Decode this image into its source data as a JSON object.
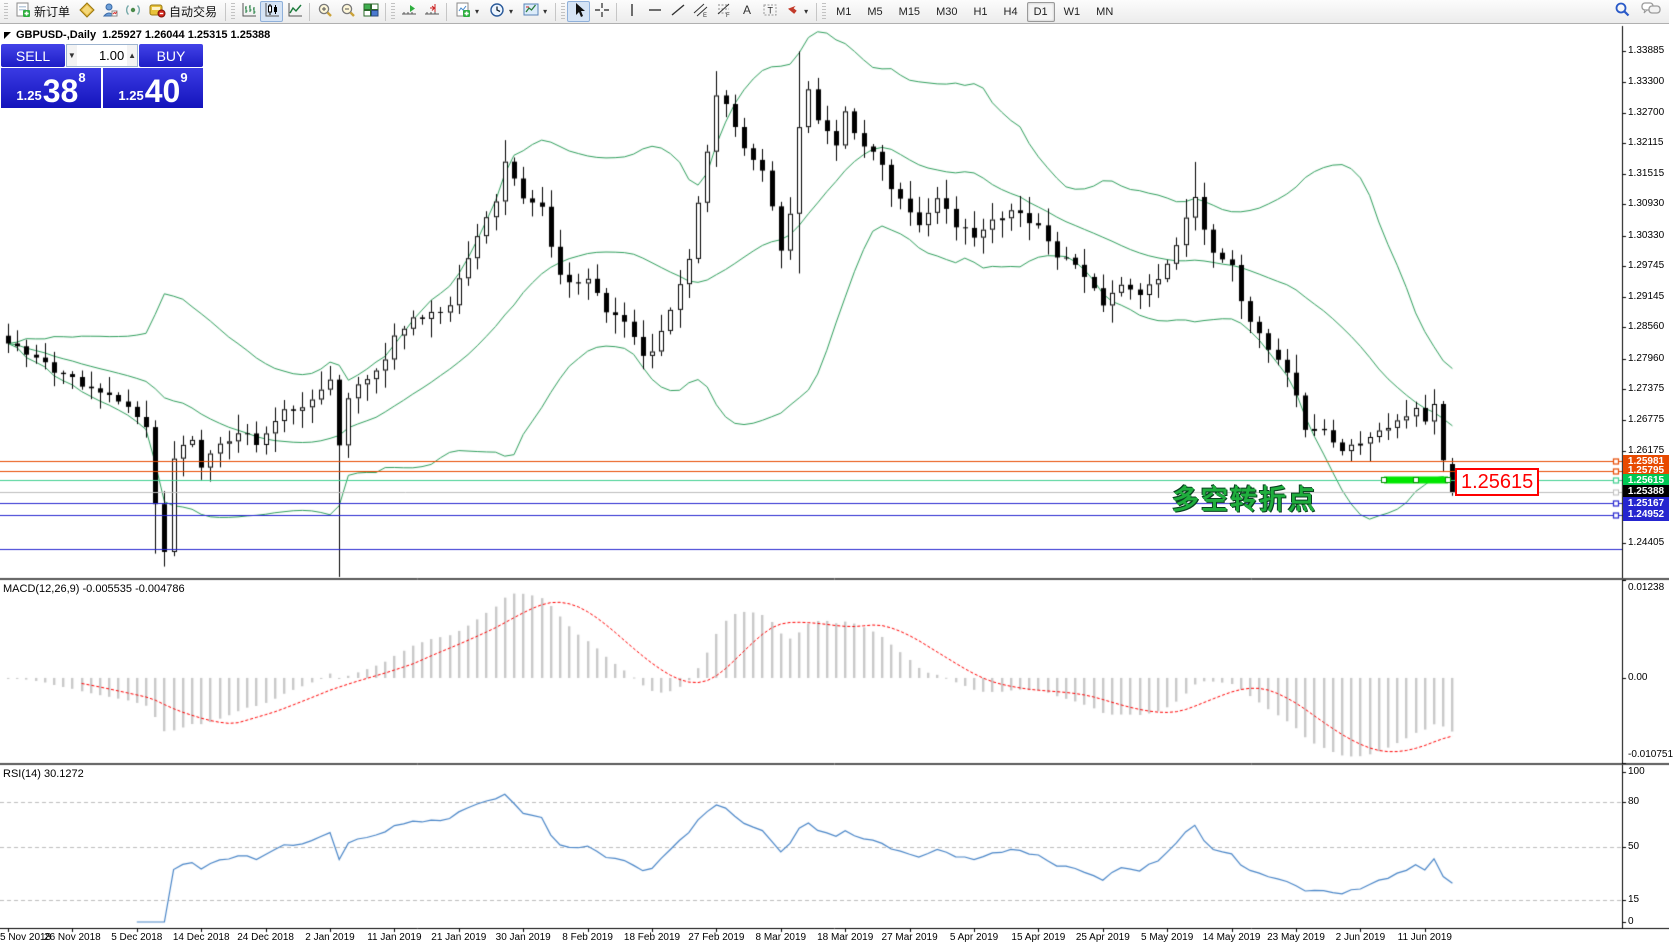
{
  "toolbar": {
    "new_order_label": "新订单",
    "autotrade_label": "自动交易",
    "timeframes": [
      "M1",
      "M5",
      "M15",
      "M30",
      "H1",
      "H4",
      "D1",
      "W1",
      "MN"
    ],
    "active_timeframe": "D1"
  },
  "chart": {
    "title_text": "GBPUSD-,Daily",
    "ohlc_text": "1.25927 1.26044 1.25315 1.25388"
  },
  "trade_panel": {
    "sell_label": "SELL",
    "buy_label": "BUY",
    "volume": "1.00",
    "sell_small": "1.25",
    "sell_big": "38",
    "sell_sup": "8",
    "buy_small": "1.25",
    "buy_big": "40",
    "buy_sup": "9"
  },
  "chart_data": {
    "type": "candlestick",
    "symbol": "GBPUSD-",
    "timeframe": "Daily",
    "current_ohlc": {
      "open": 1.25927,
      "high": 1.26044,
      "low": 1.25315,
      "close": 1.25388
    },
    "price_scale": {
      "top": 1.3437,
      "bottom": 1.2373
    },
    "y_ticks": [
      {
        "p": 1.33885,
        "t": "1.33885"
      },
      {
        "p": 1.333,
        "t": "1.33300"
      },
      {
        "p": 1.327,
        "t": "1.32700"
      },
      {
        "p": 1.32115,
        "t": "1.32115"
      },
      {
        "p": 1.31515,
        "t": "1.31515"
      },
      {
        "p": 1.3093,
        "t": "1.30930"
      },
      {
        "p": 1.3033,
        "t": "1.30330"
      },
      {
        "p": 1.29745,
        "t": "1.29745"
      },
      {
        "p": 1.29145,
        "t": "1.29145"
      },
      {
        "p": 1.2856,
        "t": "1.28560"
      },
      {
        "p": 1.2796,
        "t": "1.27960"
      },
      {
        "p": 1.27375,
        "t": "1.27375"
      },
      {
        "p": 1.26775,
        "t": "1.26775"
      },
      {
        "p": 1.26175,
        "t": "1.26175"
      },
      {
        "p": 1.24405,
        "t": "1.24405"
      }
    ],
    "levels": [
      {
        "price": 1.25981,
        "text": "1.25981",
        "color": "#e84a00",
        "badge_bg": "#e84a00",
        "badge_fg": "#ffffff"
      },
      {
        "price": 1.25795,
        "text": "1.25795",
        "color": "#e84a00",
        "badge_bg": "#e84a00",
        "badge_fg": "#ffffff"
      },
      {
        "price": 1.25615,
        "text": "1.25615",
        "color": "#3fcf8f",
        "badge_bg": "#00c853",
        "badge_fg": "#ffffff"
      },
      {
        "price": 1.25388,
        "text": "1.25388",
        "color": "#bdbdbd",
        "badge_bg": "#000000",
        "badge_fg": "#ffffff",
        "current": true
      },
      {
        "price": 1.25167,
        "text": "1.25167",
        "color": "#2525cf",
        "badge_bg": "#2525cf",
        "badge_fg": "#ffffff"
      },
      {
        "price": 1.24952,
        "text": "1.24952",
        "color": "#2525cf",
        "badge_bg": "#2525cf",
        "badge_fg": "#ffffff"
      },
      {
        "price": 1.2428,
        "text": "",
        "color": "#2525cf",
        "badge_bg": null
      }
    ],
    "trend_segment": {
      "price": 1.25615,
      "x_from": 1384,
      "x_to": 1448,
      "color": "#00e600",
      "width": 7
    },
    "callout": {
      "text": "1.25615",
      "x": 1455,
      "y": 468
    },
    "annotation": {
      "text": "多空转折点",
      "color": "#1fae3d",
      "x": 1172,
      "y": 478,
      "size": 27
    },
    "bars_count": 158,
    "close_anchors": [
      [
        0,
        1.2825
      ],
      [
        3,
        1.2792
      ],
      [
        7,
        1.2755
      ],
      [
        10,
        1.2738
      ],
      [
        13,
        1.2702
      ],
      [
        15,
        1.266
      ],
      [
        16,
        1.252
      ],
      [
        17,
        1.243
      ],
      [
        18,
        1.26
      ],
      [
        20,
        1.2645
      ],
      [
        21,
        1.2588
      ],
      [
        23,
        1.2625
      ],
      [
        25,
        1.2658
      ],
      [
        27,
        1.2632
      ],
      [
        28,
        1.2648
      ],
      [
        30,
        1.2692
      ],
      [
        32,
        1.2705
      ],
      [
        34,
        1.2742
      ],
      [
        35,
        1.2752
      ],
      [
        36,
        1.263
      ],
      [
        37,
        1.2722
      ],
      [
        39,
        1.2758
      ],
      [
        41,
        1.2792
      ],
      [
        42,
        1.2845
      ],
      [
        44,
        1.2872
      ],
      [
        46,
        1.2878
      ],
      [
        48,
        1.2902
      ],
      [
        49,
        1.2952
      ],
      [
        51,
        1.3032
      ],
      [
        53,
        1.3102
      ],
      [
        54,
        1.318
      ],
      [
        56,
        1.3112
      ],
      [
        58,
        1.3082
      ],
      [
        60,
        1.2952
      ],
      [
        63,
        1.2942
      ],
      [
        65,
        1.2892
      ],
      [
        67,
        1.2862
      ],
      [
        69,
        1.2802
      ],
      [
        70,
        1.2812
      ],
      [
        72,
        1.2892
      ],
      [
        74,
        1.2982
      ],
      [
        75,
        1.3102
      ],
      [
        76,
        1.3202
      ],
      [
        77,
        1.3302
      ],
      [
        78,
        1.3282
      ],
      [
        80,
        1.3202
      ],
      [
        82,
        1.3162
      ],
      [
        84,
        1.3012
      ],
      [
        85,
        1.3082
      ],
      [
        86,
        1.3242
      ],
      [
        87,
        1.3322
      ],
      [
        88,
        1.3252
      ],
      [
        90,
        1.3202
      ],
      [
        91,
        1.3272
      ],
      [
        93,
        1.3202
      ],
      [
        95,
        1.3172
      ],
      [
        96,
        1.3122
      ],
      [
        98,
        1.3072
      ],
      [
        99,
        1.3052
      ],
      [
        101,
        1.3102
      ],
      [
        103,
        1.3052
      ],
      [
        105,
        1.3032
      ],
      [
        107,
        1.3062
      ],
      [
        109,
        1.3082
      ],
      [
        112,
        1.3052
      ],
      [
        114,
        1.2992
      ],
      [
        116,
        1.2982
      ],
      [
        119,
        1.2902
      ],
      [
        121,
        1.2932
      ],
      [
        123,
        1.2922
      ],
      [
        126,
        1.2972
      ],
      [
        128,
        1.3072
      ],
      [
        129,
        1.3102
      ],
      [
        130,
        1.3052
      ],
      [
        131,
        1.3002
      ],
      [
        133,
        1.2972
      ],
      [
        134,
        1.2902
      ],
      [
        136,
        1.2842
      ],
      [
        138,
        1.2792
      ],
      [
        140,
        1.2732
      ],
      [
        141,
        1.2662
      ],
      [
        143,
        1.2652
      ],
      [
        145,
        1.2612
      ],
      [
        147,
        1.2632
      ],
      [
        148,
        1.2642
      ],
      [
        150,
        1.2662
      ],
      [
        152,
        1.2692
      ],
      [
        153,
        1.2702
      ],
      [
        154,
        1.2682
      ],
      [
        155,
        1.2702
      ],
      [
        156,
        1.2595
      ],
      [
        157,
        1.25388
      ]
    ],
    "wick_overrides": {
      "16": {
        "low": 1.242
      },
      "17": {
        "low": 1.2395
      },
      "18": {
        "low": 1.2415
      },
      "36": {
        "low": 1.2375
      },
      "54": {
        "high": 1.3217
      },
      "77": {
        "high": 1.335
      },
      "86": {
        "high": 1.3388,
        "low": 1.296
      },
      "129": {
        "high": 1.3175
      },
      "157": {
        "high": 1.26044,
        "low": 1.25315
      }
    },
    "date_labels": [
      {
        "bar": 0,
        "text": "5 Nov 2018"
      },
      {
        "bar": 7,
        "text": "26 Nov 2018"
      },
      {
        "bar": 14,
        "text": "5 Dec 2018"
      },
      {
        "bar": 21,
        "text": "14 Dec 2018"
      },
      {
        "bar": 28,
        "text": "24 Dec 2018"
      },
      {
        "bar": 35,
        "text": "2 Jan 2019"
      },
      {
        "bar": 42,
        "text": "11 Jan 2019"
      },
      {
        "bar": 49,
        "text": "21 Jan 2019"
      },
      {
        "bar": 56,
        "text": "30 Jan 2019"
      },
      {
        "bar": 63,
        "text": "8 Feb 2019"
      },
      {
        "bar": 70,
        "text": "18 Feb 2019"
      },
      {
        "bar": 77,
        "text": "27 Feb 2019"
      },
      {
        "bar": 84,
        "text": "8 Mar 2019"
      },
      {
        "bar": 91,
        "text": "18 Mar 2019"
      },
      {
        "bar": 98,
        "text": "27 Mar 2019"
      },
      {
        "bar": 105,
        "text": "5 Apr 2019"
      },
      {
        "bar": 112,
        "text": "15 Apr 2019"
      },
      {
        "bar": 119,
        "text": "25 Apr 2019"
      },
      {
        "bar": 126,
        "text": "5 May 2019"
      },
      {
        "bar": 133,
        "text": "14 May 2019"
      },
      {
        "bar": 140,
        "text": "23 May 2019"
      },
      {
        "bar": 147,
        "text": "2 Jun 2019"
      },
      {
        "bar": 154,
        "text": "11 Jun 2019"
      }
    ],
    "bollinger": {
      "period": 20,
      "deviation": 2,
      "color": "#2e9e5b"
    },
    "macd": {
      "label": "MACD(12,26,9)",
      "values_text": "-0.005535 -0.004786",
      "fast": 12,
      "slow": 26,
      "signal": 9,
      "scale_top": 0.01238,
      "scale_top_text": "0.01238",
      "zero_text": "0.00",
      "scale_bottom": -0.010751,
      "scale_bottom_text": "-0.010751",
      "hist_color": "#c9c9c9",
      "signal_color": "#ff0000"
    },
    "rsi": {
      "label": "RSI(14) 30.1272",
      "period": 14,
      "current": 30.1272,
      "levels": [
        80,
        50,
        15
      ],
      "axis_ticks": [
        {
          "v": 100,
          "t": "100"
        },
        {
          "v": 80,
          "t": "80"
        },
        {
          "v": 50,
          "t": "50"
        },
        {
          "v": 15,
          "t": "15"
        },
        {
          "v": 0,
          "t": "0"
        }
      ],
      "color": "#4a86c8",
      "level_color": "#bdbdbd"
    }
  }
}
